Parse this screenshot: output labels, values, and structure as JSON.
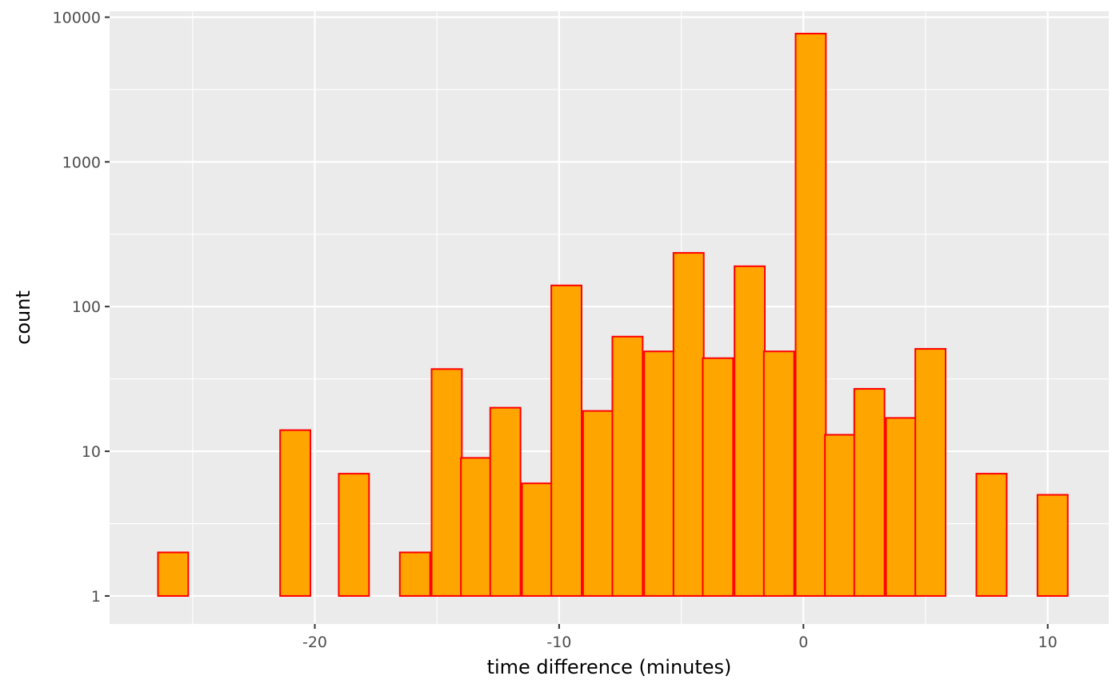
{
  "chart_data": {
    "type": "bar",
    "subtype": "histogram",
    "xlabel": "time difference (minutes)",
    "ylabel": "count",
    "x_ticks": [
      -20,
      -10,
      0,
      10
    ],
    "x_tick_labels": [
      "-20",
      "-10",
      "0",
      "10"
    ],
    "y_ticks": [
      1,
      10,
      100,
      1000,
      10000
    ],
    "y_tick_labels": [
      "1",
      "10",
      "100",
      "1000",
      "10000"
    ],
    "y_scale": "log10",
    "xlim": [
      -28.4,
      12.5
    ],
    "ylim": [
      0.64,
      11000
    ],
    "grid": true,
    "legend": "none",
    "bin_width": 1.24,
    "bins": [
      {
        "x": -25.8,
        "count": 2
      },
      {
        "x": -24.6,
        "count": 0
      },
      {
        "x": -23.3,
        "count": 1
      },
      {
        "x": -22.1,
        "count": 0
      },
      {
        "x": -20.8,
        "count": 14
      },
      {
        "x": -19.6,
        "count": 1
      },
      {
        "x": -18.4,
        "count": 7
      },
      {
        "x": -17.1,
        "count": 0
      },
      {
        "x": -15.9,
        "count": 2
      },
      {
        "x": -14.6,
        "count": 37
      },
      {
        "x": -13.4,
        "count": 9
      },
      {
        "x": -12.2,
        "count": 20
      },
      {
        "x": -10.9,
        "count": 6
      },
      {
        "x": -9.7,
        "count": 140
      },
      {
        "x": -8.4,
        "count": 19
      },
      {
        "x": -7.2,
        "count": 62
      },
      {
        "x": -5.9,
        "count": 49
      },
      {
        "x": -4.7,
        "count": 235
      },
      {
        "x": -3.5,
        "count": 44
      },
      {
        "x": -2.2,
        "count": 190
      },
      {
        "x": -1.0,
        "count": 49
      },
      {
        "x": 0.3,
        "count": 7700
      },
      {
        "x": 1.5,
        "count": 13
      },
      {
        "x": 2.7,
        "count": 27
      },
      {
        "x": 4.0,
        "count": 17
      },
      {
        "x": 5.2,
        "count": 51
      },
      {
        "x": 6.5,
        "count": 1
      },
      {
        "x": 7.7,
        "count": 7
      },
      {
        "x": 8.9,
        "count": 1
      },
      {
        "x": 10.2,
        "count": 5
      }
    ],
    "colors": {
      "fill": "#FFA500",
      "outline": "#FF0000",
      "panel": "#EBEBEB",
      "grid": "#FFFFFF",
      "tick_text": "#4D4D4D",
      "title_text": "#000000"
    }
  }
}
